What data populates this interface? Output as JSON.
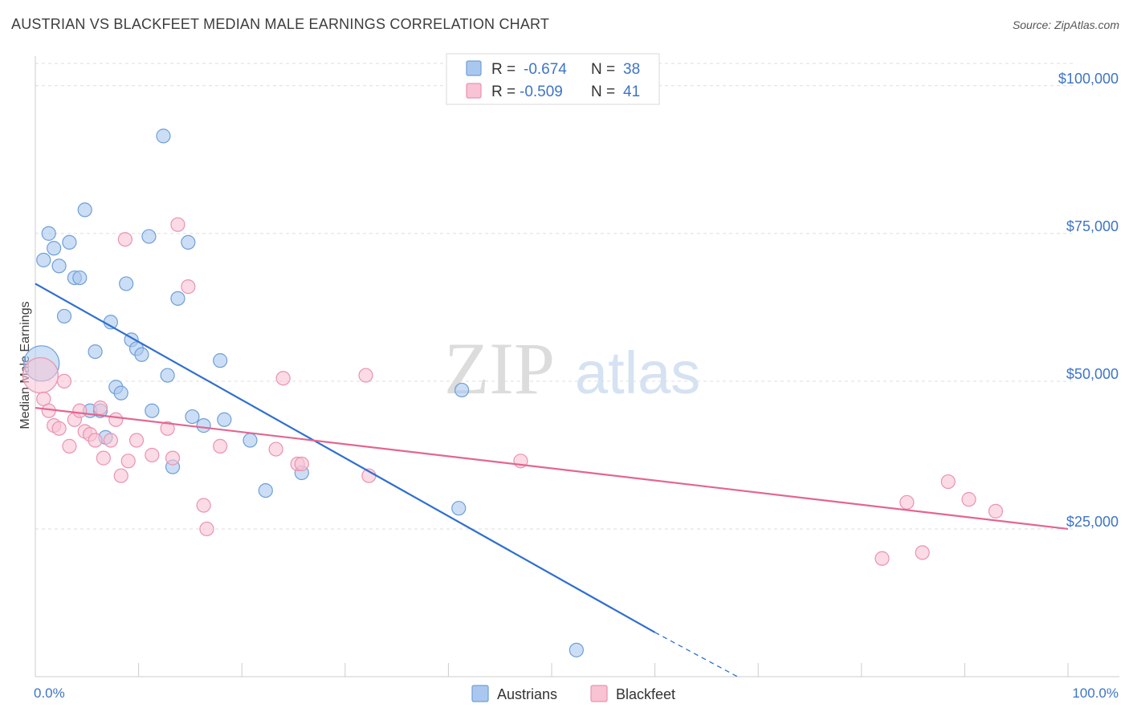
{
  "header": {
    "title": "AUSTRIAN VS BLACKFEET MEDIAN MALE EARNINGS CORRELATION CHART",
    "source": "Source: ZipAtlas.com"
  },
  "watermark": {
    "zip": "ZIP",
    "atlas": "atlas"
  },
  "colors": {
    "austrians_fill": "#aac8ef",
    "austrians_stroke": "#6f9fd8",
    "austrians_line": "#2f6fcf",
    "blackfeet_fill": "#f8c3d3",
    "blackfeet_stroke": "#ea93b0",
    "blackfeet_line": "#e3668f",
    "grid": "#dddddd",
    "tick_text": "#3d74c7"
  },
  "legend": {
    "rows": [
      {
        "r_label": "R = ",
        "r_value": "-0.674",
        "n_label": "N = ",
        "n_value": "38"
      },
      {
        "r_label": "R = ",
        "r_value": "-0.509",
        "n_label": "N = ",
        "n_value": "41"
      }
    ]
  },
  "chart_data": {
    "type": "scatter",
    "ylabel": "Median Male Earnings",
    "xlim": [
      0,
      100
    ],
    "ylim": [
      0,
      105000
    ],
    "x_tick_labels": [
      "0.0%",
      "100.0%"
    ],
    "y_ticks": [
      {
        "value": 25000,
        "label": "$25,000"
      },
      {
        "value": 50000,
        "label": "$50,000"
      },
      {
        "value": 75000,
        "label": "$75,000"
      },
      {
        "value": 100000,
        "label": "$100,000"
      }
    ],
    "grid": true,
    "legend_position": "bottom",
    "series": [
      {
        "name": "Austrians",
        "trend": {
          "x": [
            0,
            60
          ],
          "y": [
            66500,
            7500
          ],
          "dashed_to": [
            68,
            0
          ]
        },
        "points": [
          {
            "x": 0.6,
            "y": 53000,
            "big": true
          },
          {
            "x": 0.8,
            "y": 70500
          },
          {
            "x": 1.3,
            "y": 75000
          },
          {
            "x": 1.8,
            "y": 72500
          },
          {
            "x": 2.3,
            "y": 69500
          },
          {
            "x": 2.8,
            "y": 61000
          },
          {
            "x": 3.3,
            "y": 73500
          },
          {
            "x": 3.8,
            "y": 67500
          },
          {
            "x": 4.3,
            "y": 67500
          },
          {
            "x": 4.8,
            "y": 79000
          },
          {
            "x": 5.3,
            "y": 45000
          },
          {
            "x": 5.8,
            "y": 55000
          },
          {
            "x": 6.3,
            "y": 45000
          },
          {
            "x": 6.8,
            "y": 40500
          },
          {
            "x": 7.3,
            "y": 60000
          },
          {
            "x": 7.8,
            "y": 49000
          },
          {
            "x": 8.3,
            "y": 48000
          },
          {
            "x": 8.8,
            "y": 66500
          },
          {
            "x": 9.3,
            "y": 57000
          },
          {
            "x": 9.8,
            "y": 55500
          },
          {
            "x": 10.3,
            "y": 54500
          },
          {
            "x": 11.0,
            "y": 74500
          },
          {
            "x": 11.3,
            "y": 45000
          },
          {
            "x": 12.4,
            "y": 91500
          },
          {
            "x": 12.8,
            "y": 51000
          },
          {
            "x": 13.3,
            "y": 35500
          },
          {
            "x": 13.8,
            "y": 64000
          },
          {
            "x": 14.8,
            "y": 73500
          },
          {
            "x": 15.2,
            "y": 44000
          },
          {
            "x": 16.3,
            "y": 42500
          },
          {
            "x": 17.9,
            "y": 53500
          },
          {
            "x": 18.3,
            "y": 43500
          },
          {
            "x": 20.8,
            "y": 40000
          },
          {
            "x": 22.3,
            "y": 31500
          },
          {
            "x": 25.8,
            "y": 34500
          },
          {
            "x": 41.3,
            "y": 48500
          },
          {
            "x": 41.0,
            "y": 28500
          },
          {
            "x": 52.4,
            "y": 4500
          }
        ]
      },
      {
        "name": "Blackfeet",
        "trend": {
          "x": [
            0,
            100
          ],
          "y": [
            45500,
            25000
          ]
        },
        "points": [
          {
            "x": 0.5,
            "y": 51000,
            "big": true
          },
          {
            "x": 0.8,
            "y": 47000
          },
          {
            "x": 1.3,
            "y": 45000
          },
          {
            "x": 1.8,
            "y": 42500
          },
          {
            "x": 2.3,
            "y": 42000
          },
          {
            "x": 2.8,
            "y": 50000
          },
          {
            "x": 3.3,
            "y": 39000
          },
          {
            "x": 3.8,
            "y": 43500
          },
          {
            "x": 4.3,
            "y": 45000
          },
          {
            "x": 4.8,
            "y": 41500
          },
          {
            "x": 5.3,
            "y": 41000
          },
          {
            "x": 5.8,
            "y": 40000
          },
          {
            "x": 6.3,
            "y": 45500
          },
          {
            "x": 6.6,
            "y": 37000
          },
          {
            "x": 7.3,
            "y": 40000
          },
          {
            "x": 7.8,
            "y": 43500
          },
          {
            "x": 8.3,
            "y": 34000
          },
          {
            "x": 8.7,
            "y": 74000
          },
          {
            "x": 9.0,
            "y": 36500
          },
          {
            "x": 9.8,
            "y": 40000
          },
          {
            "x": 11.3,
            "y": 37500
          },
          {
            "x": 12.8,
            "y": 42000
          },
          {
            "x": 13.3,
            "y": 37000
          },
          {
            "x": 13.8,
            "y": 76500
          },
          {
            "x": 14.8,
            "y": 66000
          },
          {
            "x": 16.3,
            "y": 29000
          },
          {
            "x": 16.6,
            "y": 25000
          },
          {
            "x": 17.9,
            "y": 39000
          },
          {
            "x": 23.3,
            "y": 38500
          },
          {
            "x": 24.0,
            "y": 50500
          },
          {
            "x": 25.4,
            "y": 36000
          },
          {
            "x": 25.8,
            "y": 36000
          },
          {
            "x": 32.0,
            "y": 51000
          },
          {
            "x": 32.3,
            "y": 34000
          },
          {
            "x": 47.0,
            "y": 36500
          },
          {
            "x": 82.0,
            "y": 20000
          },
          {
            "x": 84.4,
            "y": 29500
          },
          {
            "x": 85.9,
            "y": 21000
          },
          {
            "x": 88.4,
            "y": 33000
          },
          {
            "x": 90.4,
            "y": 30000
          },
          {
            "x": 93.0,
            "y": 28000
          }
        ]
      }
    ]
  }
}
